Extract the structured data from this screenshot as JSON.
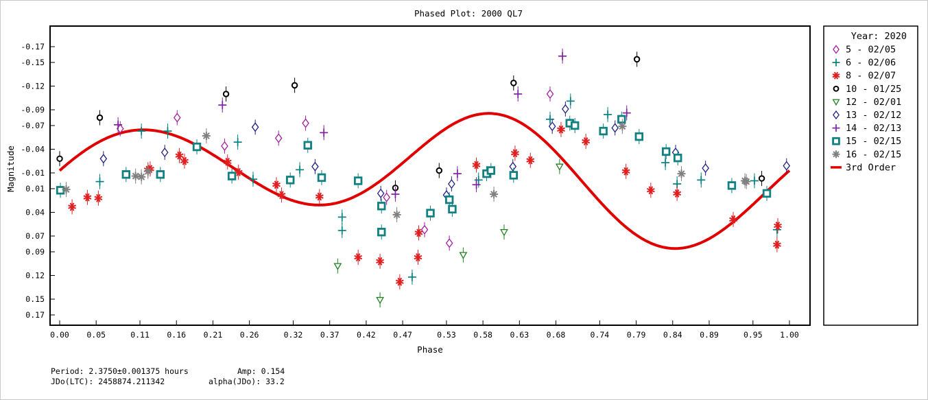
{
  "chart_data": {
    "type": "scatter",
    "title": "Phased Plot: 2000 QL7",
    "xlabel": "Phase",
    "ylabel": "Magnitude",
    "xlim": [
      -0.02,
      1.03
    ],
    "ylim": [
      0.19,
      -0.195
    ],
    "y_inverted": true,
    "grid": false,
    "x_ticks": [
      0.0,
      0.05,
      0.11,
      0.16,
      0.21,
      0.26,
      0.32,
      0.37,
      0.42,
      0.47,
      0.53,
      0.58,
      0.63,
      0.68,
      0.74,
      0.79,
      0.84,
      0.89,
      0.95,
      1.0
    ],
    "x_tick_labels": [
      "0.00",
      "0.05",
      "0.11",
      "0.16",
      "0.21",
      "0.26",
      "0.32",
      "0.37",
      "0.42",
      "0.47",
      "0.53",
      "0.58",
      "0.63",
      "0.68",
      "0.74",
      "0.79",
      "0.84",
      "0.89",
      "0.95",
      "1.00"
    ],
    "y_ticks": [
      -0.17,
      -0.15,
      -0.12,
      -0.09,
      -0.07,
      -0.04,
      -0.01,
      0.01,
      0.04,
      0.07,
      0.09,
      0.12,
      0.15,
      0.17
    ],
    "y_tick_labels": [
      "-0.17",
      "-0.15",
      "-0.12",
      "-0.09",
      "-0.07",
      "-0.04",
      "-0.01",
      "0.01",
      "0.04",
      "0.07",
      "0.09",
      "0.12",
      "0.15",
      "0.17"
    ],
    "legend": {
      "position": "right",
      "title": "Year: 2020",
      "entries": [
        "5 - 02/05",
        "6 - 02/06",
        "8 - 02/07",
        "10 - 01/25",
        "12 - 02/01",
        "13 - 02/12",
        "14 - 02/13",
        "15 - 02/15",
        "16 - 02/15",
        "3rd Order"
      ]
    },
    "series": [
      {
        "name": "5 - 02/05",
        "marker": "diamond",
        "color": "#a020a0",
        "points": [
          [
            0.083,
            -0.066
          ],
          [
            0.161,
            -0.08
          ],
          [
            0.226,
            -0.044
          ],
          [
            0.3,
            -0.054
          ],
          [
            0.337,
            -0.073
          ],
          [
            0.448,
            0.021
          ],
          [
            0.5,
            0.062
          ],
          [
            0.534,
            0.079
          ],
          [
            0.672,
            -0.11
          ]
        ]
      },
      {
        "name": "6 - 02/06",
        "marker": "cross",
        "color": "#008080",
        "points": [
          [
            0.055,
            0.001
          ],
          [
            0.112,
            -0.063
          ],
          [
            0.148,
            -0.063
          ],
          [
            0.244,
            -0.049
          ],
          [
            0.265,
            -0.002
          ],
          [
            0.329,
            -0.014
          ],
          [
            0.387,
            0.046
          ],
          [
            0.387,
            0.063
          ],
          [
            0.483,
            0.122
          ],
          [
            0.574,
            -0.001
          ],
          [
            0.672,
            -0.078
          ],
          [
            0.7,
            -0.101
          ],
          [
            0.751,
            -0.084
          ],
          [
            0.83,
            -0.023
          ],
          [
            0.846,
            0.004
          ],
          [
            0.879,
            -0.001
          ],
          [
            0.952,
            0.0
          ],
          [
            0.983,
            0.062
          ]
        ]
      },
      {
        "name": "8 - 02/07",
        "marker": "asterisk",
        "color": "#e02020",
        "points": [
          [
            0.017,
            0.033
          ],
          [
            0.038,
            0.021
          ],
          [
            0.053,
            0.022
          ],
          [
            0.121,
            -0.014
          ],
          [
            0.124,
            -0.015
          ],
          [
            0.164,
            -0.032
          ],
          [
            0.171,
            -0.025
          ],
          [
            0.23,
            -0.024
          ],
          [
            0.245,
            -0.011
          ],
          [
            0.297,
            0.005
          ],
          [
            0.304,
            0.018
          ],
          [
            0.356,
            0.02
          ],
          [
            0.409,
            0.097
          ],
          [
            0.439,
            0.102
          ],
          [
            0.466,
            0.128
          ],
          [
            0.492,
            0.066
          ],
          [
            0.491,
            0.097
          ],
          [
            0.571,
            -0.02
          ],
          [
            0.624,
            -0.035
          ],
          [
            0.645,
            -0.026
          ],
          [
            0.687,
            -0.065
          ],
          [
            0.721,
            -0.05
          ],
          [
            0.776,
            -0.012
          ],
          [
            0.81,
            0.012
          ],
          [
            0.846,
            0.016
          ],
          [
            0.923,
            0.049
          ],
          [
            0.984,
            0.057
          ],
          [
            0.983,
            0.081
          ]
        ]
      },
      {
        "name": "10 - 01/25",
        "marker": "circle",
        "color": "#000000",
        "points": [
          [
            0.0,
            -0.028
          ],
          [
            0.055,
            -0.08
          ],
          [
            0.228,
            -0.11
          ],
          [
            0.322,
            -0.121
          ],
          [
            0.46,
            0.009
          ],
          [
            0.52,
            -0.013
          ],
          [
            0.622,
            -0.124
          ],
          [
            0.791,
            -0.154
          ],
          [
            0.962,
            -0.003
          ]
        ]
      },
      {
        "name": "12 - 02/01",
        "marker": "triangle-down",
        "color": "#208020",
        "points": [
          [
            0.381,
            0.108
          ],
          [
            0.439,
            0.151
          ],
          [
            0.553,
            0.094
          ],
          [
            0.609,
            0.065
          ],
          [
            0.685,
            -0.018
          ]
        ]
      },
      {
        "name": "13 - 02/12",
        "marker": "diamond",
        "color": "#202080",
        "points": [
          [
            0.06,
            -0.028
          ],
          [
            0.144,
            -0.036
          ],
          [
            0.268,
            -0.068
          ],
          [
            0.35,
            -0.018
          ],
          [
            0.44,
            0.016
          ],
          [
            0.53,
            0.018
          ],
          [
            0.537,
            0.004
          ],
          [
            0.621,
            -0.018
          ],
          [
            0.675,
            -0.069
          ],
          [
            0.693,
            -0.091
          ],
          [
            0.761,
            -0.067
          ],
          [
            0.844,
            -0.036
          ],
          [
            0.885,
            -0.016
          ],
          [
            0.996,
            -0.019
          ]
        ]
      },
      {
        "name": "14 - 02/13",
        "marker": "cross",
        "color": "#8020a0",
        "points": [
          [
            0.08,
            -0.071
          ],
          [
            0.223,
            -0.096
          ],
          [
            0.362,
            -0.061
          ],
          [
            0.46,
            0.017
          ],
          [
            0.571,
            0.005
          ],
          [
            0.545,
            -0.009
          ],
          [
            0.628,
            -0.11
          ],
          [
            0.689,
            -0.158
          ],
          [
            0.777,
            -0.086
          ]
        ]
      },
      {
        "name": "15 - 02/15",
        "marker": "square",
        "color": "#108080",
        "points": [
          [
            0.001,
            0.012
          ],
          [
            0.091,
            -0.008
          ],
          [
            0.138,
            -0.008
          ],
          [
            0.188,
            -0.043
          ],
          [
            0.236,
            -0.006
          ],
          [
            0.316,
            -0.001
          ],
          [
            0.34,
            -0.045
          ],
          [
            0.359,
            -0.004
          ],
          [
            0.409,
            0.0
          ],
          [
            0.441,
            0.032
          ],
          [
            0.441,
            0.065
          ],
          [
            0.508,
            0.041
          ],
          [
            0.534,
            0.024
          ],
          [
            0.538,
            0.036
          ],
          [
            0.585,
            -0.009
          ],
          [
            0.591,
            -0.013
          ],
          [
            0.622,
            -0.007
          ],
          [
            0.699,
            -0.073
          ],
          [
            0.706,
            -0.07
          ],
          [
            0.745,
            -0.063
          ],
          [
            0.77,
            -0.078
          ],
          [
            0.794,
            -0.056
          ],
          [
            0.831,
            -0.037
          ],
          [
            0.847,
            -0.029
          ],
          [
            0.921,
            0.006
          ],
          [
            0.969,
            0.016
          ]
        ]
      },
      {
        "name": "16 - 02/15",
        "marker": "x-asterisk",
        "color": "#808080",
        "points": [
          [
            0.009,
            0.011
          ],
          [
            0.104,
            -0.006
          ],
          [
            0.112,
            -0.005
          ],
          [
            0.121,
            -0.012
          ],
          [
            0.201,
            -0.057
          ],
          [
            0.462,
            0.043
          ],
          [
            0.595,
            0.017
          ],
          [
            0.771,
            -0.069
          ],
          [
            0.852,
            -0.009
          ],
          [
            0.941,
            0.001
          ],
          [
            0.939,
            0.0
          ]
        ]
      }
    ],
    "fit_curve": {
      "name": "3rd Order",
      "color": "#e00000",
      "description": "3rd order Fourier fit",
      "amp": 0.154
    }
  },
  "footer": {
    "period": "Period: 2.3750±0.001375 hours",
    "amp": "Amp: 0.154",
    "jdo": "JDo(LTC): 2458874.211342",
    "alpha": "alpha(JDo): 33.2"
  }
}
